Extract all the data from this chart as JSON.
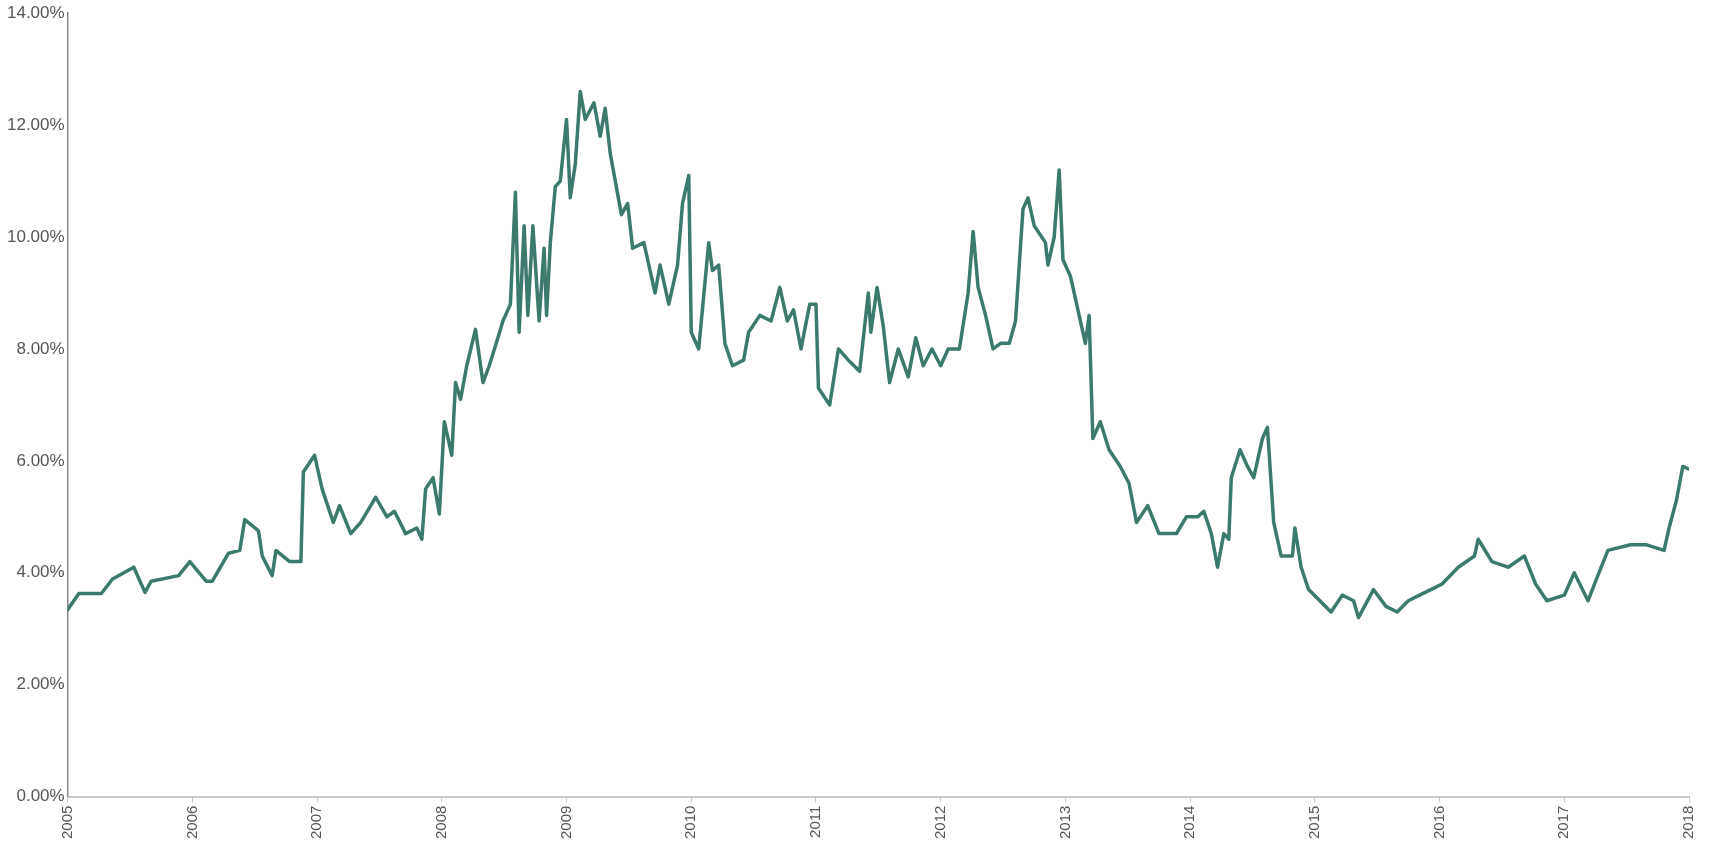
{
  "chart_data": {
    "type": "line",
    "x": [
      2005.0,
      2005.09,
      2005.27,
      2005.36,
      2005.53,
      2005.62,
      2005.67,
      2005.89,
      2005.98,
      2006.11,
      2006.16,
      2006.29,
      2006.38,
      2006.42,
      2006.53,
      2006.56,
      2006.64,
      2006.67,
      2006.78,
      2006.87,
      2006.89,
      2006.98,
      2007.04,
      2007.13,
      2007.18,
      2007.27,
      2007.35,
      2007.47,
      2007.56,
      2007.62,
      2007.71,
      2007.8,
      2007.84,
      2007.87,
      2007.93,
      2007.98,
      2008.02,
      2008.08,
      2008.11,
      2008.15,
      2008.2,
      2008.27,
      2008.33,
      2008.38,
      2008.45,
      2008.49,
      2008.55,
      2008.59,
      2008.62,
      2008.66,
      2008.69,
      2008.73,
      2008.78,
      2008.82,
      2008.84,
      2008.87,
      2008.91,
      2008.95,
      2009.0,
      2009.03,
      2009.07,
      2009.11,
      2009.15,
      2009.22,
      2009.27,
      2009.31,
      2009.35,
      2009.44,
      2009.49,
      2009.53,
      2009.62,
      2009.71,
      2009.75,
      2009.82,
      2009.89,
      2009.93,
      2009.98,
      2010.0,
      2010.06,
      2010.14,
      2010.17,
      2010.22,
      2010.27,
      2010.33,
      2010.42,
      2010.46,
      2010.55,
      2010.64,
      2010.71,
      2010.77,
      2010.82,
      2010.88,
      2010.95,
      2011.0,
      2011.02,
      2011.11,
      2011.18,
      2011.26,
      2011.35,
      2011.42,
      2011.44,
      2011.49,
      2011.54,
      2011.59,
      2011.66,
      2011.74,
      2011.8,
      2011.86,
      2011.93,
      2012.0,
      2012.06,
      2012.15,
      2012.22,
      2012.26,
      2012.3,
      2012.36,
      2012.42,
      2012.48,
      2012.55,
      2012.6,
      2012.66,
      2012.7,
      2012.75,
      2012.84,
      2012.86,
      2012.91,
      2012.95,
      2012.98,
      2013.04,
      2013.09,
      2013.16,
      2013.19,
      2013.22,
      2013.28,
      2013.35,
      2013.44,
      2013.51,
      2013.57,
      2013.66,
      2013.75,
      2013.89,
      2013.97,
      2014.06,
      2014.11,
      2014.17,
      2014.22,
      2014.27,
      2014.31,
      2014.33,
      2014.4,
      2014.46,
      2014.51,
      2014.58,
      2014.62,
      2014.67,
      2014.73,
      2014.82,
      2014.84,
      2014.89,
      2014.95,
      2015.04,
      2015.13,
      2015.22,
      2015.31,
      2015.35,
      2015.47,
      2015.57,
      2015.66,
      2015.75,
      2015.84,
      2015.93,
      2016.02,
      2016.15,
      2016.28,
      2016.31,
      2016.42,
      2016.55,
      2016.68,
      2016.77,
      2016.86,
      2017.0,
      2017.08,
      2017.19,
      2017.26,
      2017.35,
      2017.53,
      2017.66,
      2017.8,
      2017.84,
      2017.9,
      2017.95,
      2018.0
    ],
    "series": [
      {
        "color": "#3d7a6e",
        "values": [
          3.34,
          3.63,
          3.63,
          3.89,
          4.1,
          3.65,
          3.85,
          3.95,
          4.2,
          3.85,
          3.85,
          4.35,
          4.4,
          4.95,
          4.75,
          4.3,
          3.95,
          4.4,
          4.2,
          4.2,
          5.8,
          6.1,
          5.5,
          4.9,
          5.2,
          4.7,
          4.9,
          5.35,
          5.0,
          5.1,
          4.7,
          4.8,
          4.6,
          5.5,
          5.7,
          5.05,
          6.7,
          6.1,
          7.4,
          7.1,
          7.7,
          8.35,
          7.4,
          7.7,
          8.2,
          8.5,
          8.8,
          10.8,
          8.3,
          10.2,
          8.6,
          10.2,
          8.5,
          9.8,
          8.6,
          9.9,
          10.9,
          11.0,
          12.1,
          10.7,
          11.3,
          12.6,
          12.1,
          12.4,
          11.8,
          12.3,
          11.5,
          10.4,
          10.6,
          9.8,
          9.9,
          9.0,
          9.5,
          8.8,
          9.5,
          10.6,
          11.1,
          8.3,
          8.0,
          9.9,
          9.4,
          9.5,
          8.1,
          7.7,
          7.8,
          8.3,
          8.6,
          8.5,
          9.1,
          8.5,
          8.7,
          8.0,
          8.8,
          8.8,
          7.3,
          7.0,
          8.0,
          7.8,
          7.6,
          9.0,
          8.3,
          9.1,
          8.4,
          7.4,
          8.0,
          7.5,
          8.2,
          7.7,
          8.0,
          7.7,
          8.0,
          8.0,
          9.0,
          10.1,
          9.1,
          8.6,
          8.0,
          8.1,
          8.1,
          8.5,
          10.5,
          10.7,
          10.2,
          9.9,
          9.5,
          10.0,
          11.2,
          9.6,
          9.3,
          8.8,
          8.1,
          8.6,
          6.4,
          6.7,
          6.2,
          5.9,
          5.6,
          4.9,
          5.2,
          4.7,
          4.7,
          5.0,
          5.0,
          5.1,
          4.7,
          4.1,
          4.7,
          4.6,
          5.7,
          6.2,
          5.9,
          5.7,
          6.4,
          6.6,
          4.9,
          4.3,
          4.3,
          4.8,
          4.1,
          3.7,
          3.5,
          3.3,
          3.6,
          3.5,
          3.2,
          3.7,
          3.4,
          3.3,
          3.5,
          3.6,
          3.7,
          3.8,
          4.1,
          4.3,
          4.6,
          4.2,
          4.1,
          4.3,
          3.8,
          3.5,
          3.6,
          4.0,
          3.5,
          3.9,
          4.4,
          4.5,
          4.5,
          4.4,
          4.8,
          5.3,
          5.9,
          5.85
        ]
      }
    ],
    "xlim": [
      2005,
      2018
    ],
    "xticks": [
      2005,
      2006,
      2007,
      2008,
      2009,
      2010,
      2011,
      2012,
      2013,
      2014,
      2015,
      2016,
      2017,
      2018
    ],
    "ylim": [
      0,
      14
    ],
    "yticks": [
      {
        "value": 0,
        "label": "0.00%"
      },
      {
        "value": 2,
        "label": "2.00%"
      },
      {
        "value": 4,
        "label": "4.00%"
      },
      {
        "value": 6,
        "label": "6.00%"
      },
      {
        "value": 8,
        "label": "8.00%"
      },
      {
        "value": 10,
        "label": "10.00%"
      },
      {
        "value": 12,
        "label": "12.00%"
      },
      {
        "value": 14,
        "label": "14.00%"
      }
    ],
    "grid": false,
    "legend": false,
    "marker": "none",
    "line_style": "solid"
  }
}
